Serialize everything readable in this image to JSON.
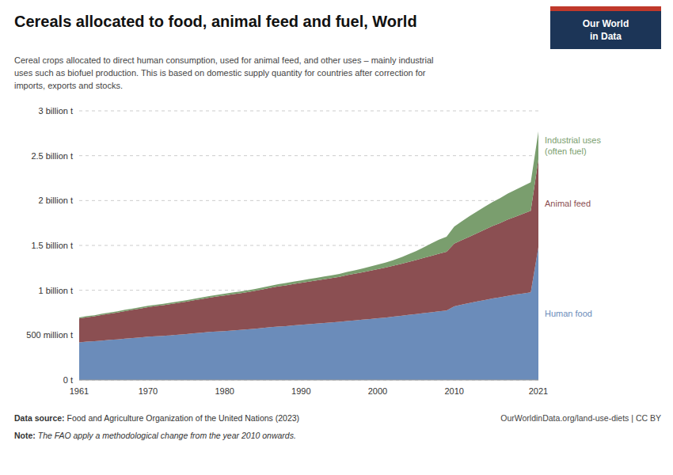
{
  "chart_data": {
    "type": "area",
    "stacked": true,
    "grid": true,
    "background": "#ffffff",
    "title": "Cereals allocated to food, animal feed and fuel, World",
    "subtitle": "Cereal crops allocated to direct human consumption, used for animal feed, and other uses – mainly industrial\nuses such as biofuel production. This is based on domestic supply quantity for countries after correction for\nimports, exports and stocks.",
    "source_label": "Data source:",
    "source": " Food and Agriculture Organization of the United Nations (2023)",
    "note_label": "Note:",
    "note": " The FAO apply a methodological change from the year 2010 onwards.",
    "url": "OurWorldinData.org/land-use-diets | CC BY",
    "logo": {
      "texts": [
        "Our World",
        "in Data"
      ],
      "color": "#1c3557",
      "accent": "#c0392b"
    },
    "x": [
      1961,
      1962,
      1963,
      1964,
      1965,
      1966,
      1967,
      1968,
      1969,
      1970,
      1971,
      1972,
      1973,
      1974,
      1975,
      1976,
      1977,
      1978,
      1979,
      1980,
      1981,
      1982,
      1983,
      1984,
      1985,
      1986,
      1987,
      1988,
      1989,
      1990,
      1991,
      1992,
      1993,
      1994,
      1995,
      1996,
      1997,
      1998,
      1999,
      2000,
      2001,
      2002,
      2003,
      2004,
      2005,
      2006,
      2007,
      2008,
      2009,
      2010,
      2011,
      2012,
      2013,
      2014,
      2015,
      2016,
      2017,
      2018,
      2019,
      2020,
      2021
    ],
    "xlim": [
      1961,
      2021
    ],
    "xticks": [
      1961,
      1970,
      1980,
      1990,
      2000,
      2010,
      2021
    ],
    "ylim": [
      0,
      3000
    ],
    "yticks": [
      {
        "value": 0,
        "label": "0 t"
      },
      {
        "value": 500,
        "label": "500 million t"
      },
      {
        "value": 1000,
        "label": "1 billion t"
      },
      {
        "value": 1500,
        "label": "1.5 billion t"
      },
      {
        "value": 2000,
        "label": "2 billion t"
      },
      {
        "value": 2500,
        "label": "2.5 billion t"
      },
      {
        "value": 3000,
        "label": "3 billion t"
      }
    ],
    "series": [
      {
        "name": "Human food",
        "color": "#6b8cba",
        "values": [
          420,
          428,
          432,
          440,
          448,
          453,
          460,
          468,
          475,
          482,
          488,
          492,
          498,
          505,
          512,
          520,
          527,
          535,
          540,
          545,
          552,
          558,
          565,
          572,
          580,
          588,
          595,
          600,
          608,
          615,
          622,
          628,
          635,
          642,
          648,
          658,
          665,
          672,
          680,
          688,
          695,
          705,
          715,
          725,
          735,
          745,
          755,
          765,
          775,
          820,
          840,
          858,
          875,
          892,
          908,
          922,
          938,
          952,
          965,
          978,
          1480
        ]
      },
      {
        "name": "Animal feed",
        "color": "#8b4f52",
        "values": [
          265,
          272,
          278,
          285,
          292,
          300,
          308,
          315,
          322,
          330,
          336,
          342,
          348,
          355,
          362,
          368,
          375,
          383,
          390,
          398,
          403,
          408,
          415,
          422,
          430,
          440,
          448,
          455,
          462,
          468,
          475,
          482,
          488,
          495,
          502,
          512,
          520,
          528,
          538,
          548,
          558,
          568,
          578,
          590,
          602,
          615,
          628,
          642,
          655,
          700,
          720,
          740,
          762,
          785,
          808,
          828,
          850,
          868,
          888,
          908,
          980
        ]
      },
      {
        "name": "Industrial uses\n(often fuel)",
        "color": "#7a9e6e",
        "values": [
          12,
          12,
          12,
          13,
          13,
          13,
          14,
          14,
          14,
          15,
          15,
          15,
          16,
          16,
          16,
          17,
          17,
          18,
          18,
          18,
          19,
          20,
          20,
          21,
          22,
          23,
          24,
          25,
          26,
          27,
          28,
          29,
          30,
          31,
          33,
          35,
          38,
          42,
          46,
          50,
          55,
          62,
          72,
          85,
          100,
          118,
          138,
          158,
          168,
          190,
          210,
          228,
          242,
          255,
          268,
          278,
          290,
          300,
          308,
          318,
          310
        ]
      }
    ]
  }
}
